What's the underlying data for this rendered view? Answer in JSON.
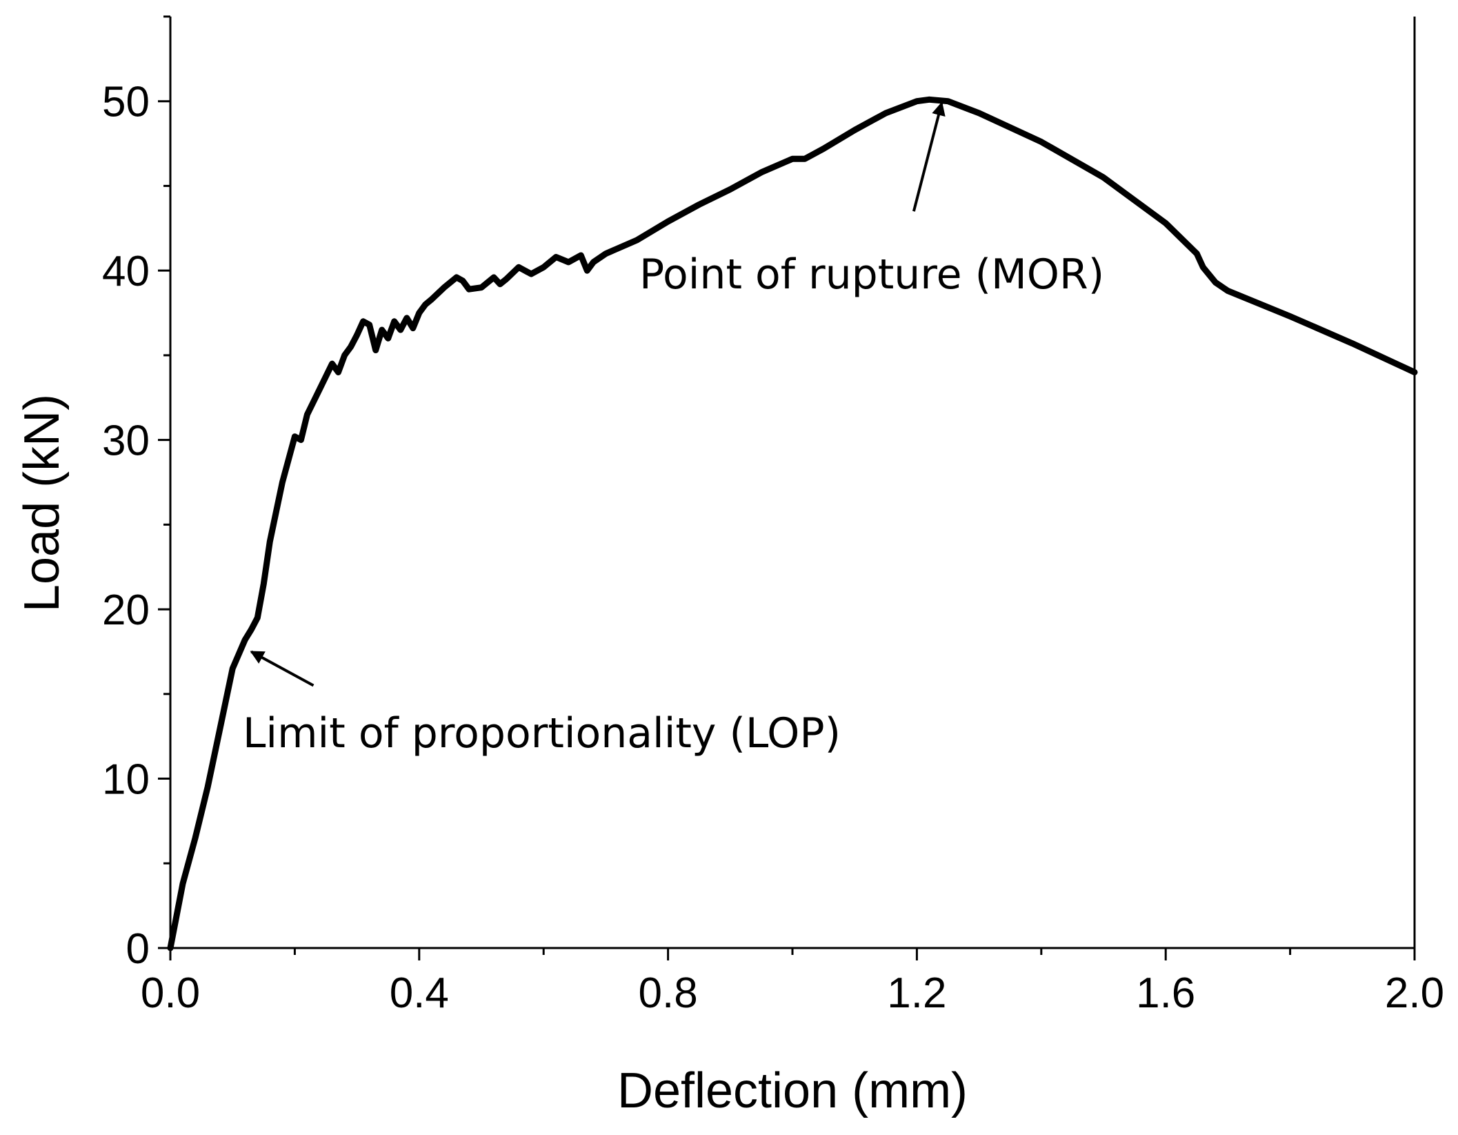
{
  "chart_data": {
    "type": "line",
    "title": "",
    "xlabel": "Deflection (mm)",
    "ylabel": "Load (kN)",
    "xlim": [
      0.0,
      2.0
    ],
    "ylim": [
      0,
      55
    ],
    "xticks": [
      0.0,
      0.4,
      0.8,
      1.2,
      1.6,
      2.0
    ],
    "xtick_labels": [
      "0.0",
      "0.4",
      "0.8",
      "1.2",
      "1.6",
      "2.0"
    ],
    "yticks": [
      0,
      10,
      20,
      30,
      40,
      50
    ],
    "ytick_labels": [
      "0",
      "10",
      "20",
      "30",
      "40",
      "50"
    ],
    "grid": false,
    "series": [
      {
        "color": "#000000",
        "x": [
          0.0,
          0.02,
          0.04,
          0.06,
          0.08,
          0.1,
          0.12,
          0.13,
          0.14,
          0.15,
          0.16,
          0.18,
          0.2,
          0.21,
          0.22,
          0.24,
          0.26,
          0.27,
          0.28,
          0.29,
          0.3,
          0.31,
          0.32,
          0.33,
          0.34,
          0.35,
          0.36,
          0.37,
          0.38,
          0.39,
          0.4,
          0.41,
          0.42,
          0.44,
          0.46,
          0.47,
          0.48,
          0.5,
          0.52,
          0.53,
          0.54,
          0.56,
          0.57,
          0.58,
          0.6,
          0.62,
          0.64,
          0.66,
          0.67,
          0.68,
          0.7,
          0.75,
          0.8,
          0.85,
          0.9,
          0.95,
          1.0,
          1.02,
          1.05,
          1.1,
          1.15,
          1.2,
          1.22,
          1.25,
          1.3,
          1.4,
          1.5,
          1.6,
          1.65,
          1.66,
          1.68,
          1.7,
          1.8,
          1.9,
          2.0
        ],
        "y": [
          0,
          3.8,
          6.5,
          9.5,
          13.0,
          16.5,
          18.2,
          18.8,
          19.5,
          21.5,
          24.0,
          27.5,
          30.2,
          30.0,
          31.5,
          33.0,
          34.5,
          34.0,
          35.0,
          35.5,
          36.2,
          37.0,
          36.8,
          35.3,
          36.5,
          36.0,
          37.0,
          36.5,
          37.2,
          36.6,
          37.5,
          38.0,
          38.3,
          39.0,
          39.6,
          39.4,
          38.9,
          39.0,
          39.6,
          39.2,
          39.5,
          40.2,
          40.0,
          39.8,
          40.2,
          40.8,
          40.5,
          40.9,
          40.0,
          40.5,
          41.0,
          41.8,
          42.9,
          43.9,
          44.8,
          45.8,
          46.6,
          46.6,
          47.2,
          48.3,
          49.3,
          50.0,
          50.1,
          50.0,
          49.3,
          47.6,
          45.5,
          42.8,
          41.0,
          40.2,
          39.3,
          38.8,
          37.3,
          35.7,
          34.0
        ]
      }
    ],
    "annotations": [
      {
        "text": "Point of rupture (MOR)",
        "point": [
          1.24,
          49.9
        ],
        "tail": [
          1.195,
          43.5
        ]
      },
      {
        "text": "Limit of proportionality (LOP)",
        "point": [
          0.13,
          17.5
        ],
        "tail": [
          0.23,
          15.5
        ]
      }
    ]
  }
}
